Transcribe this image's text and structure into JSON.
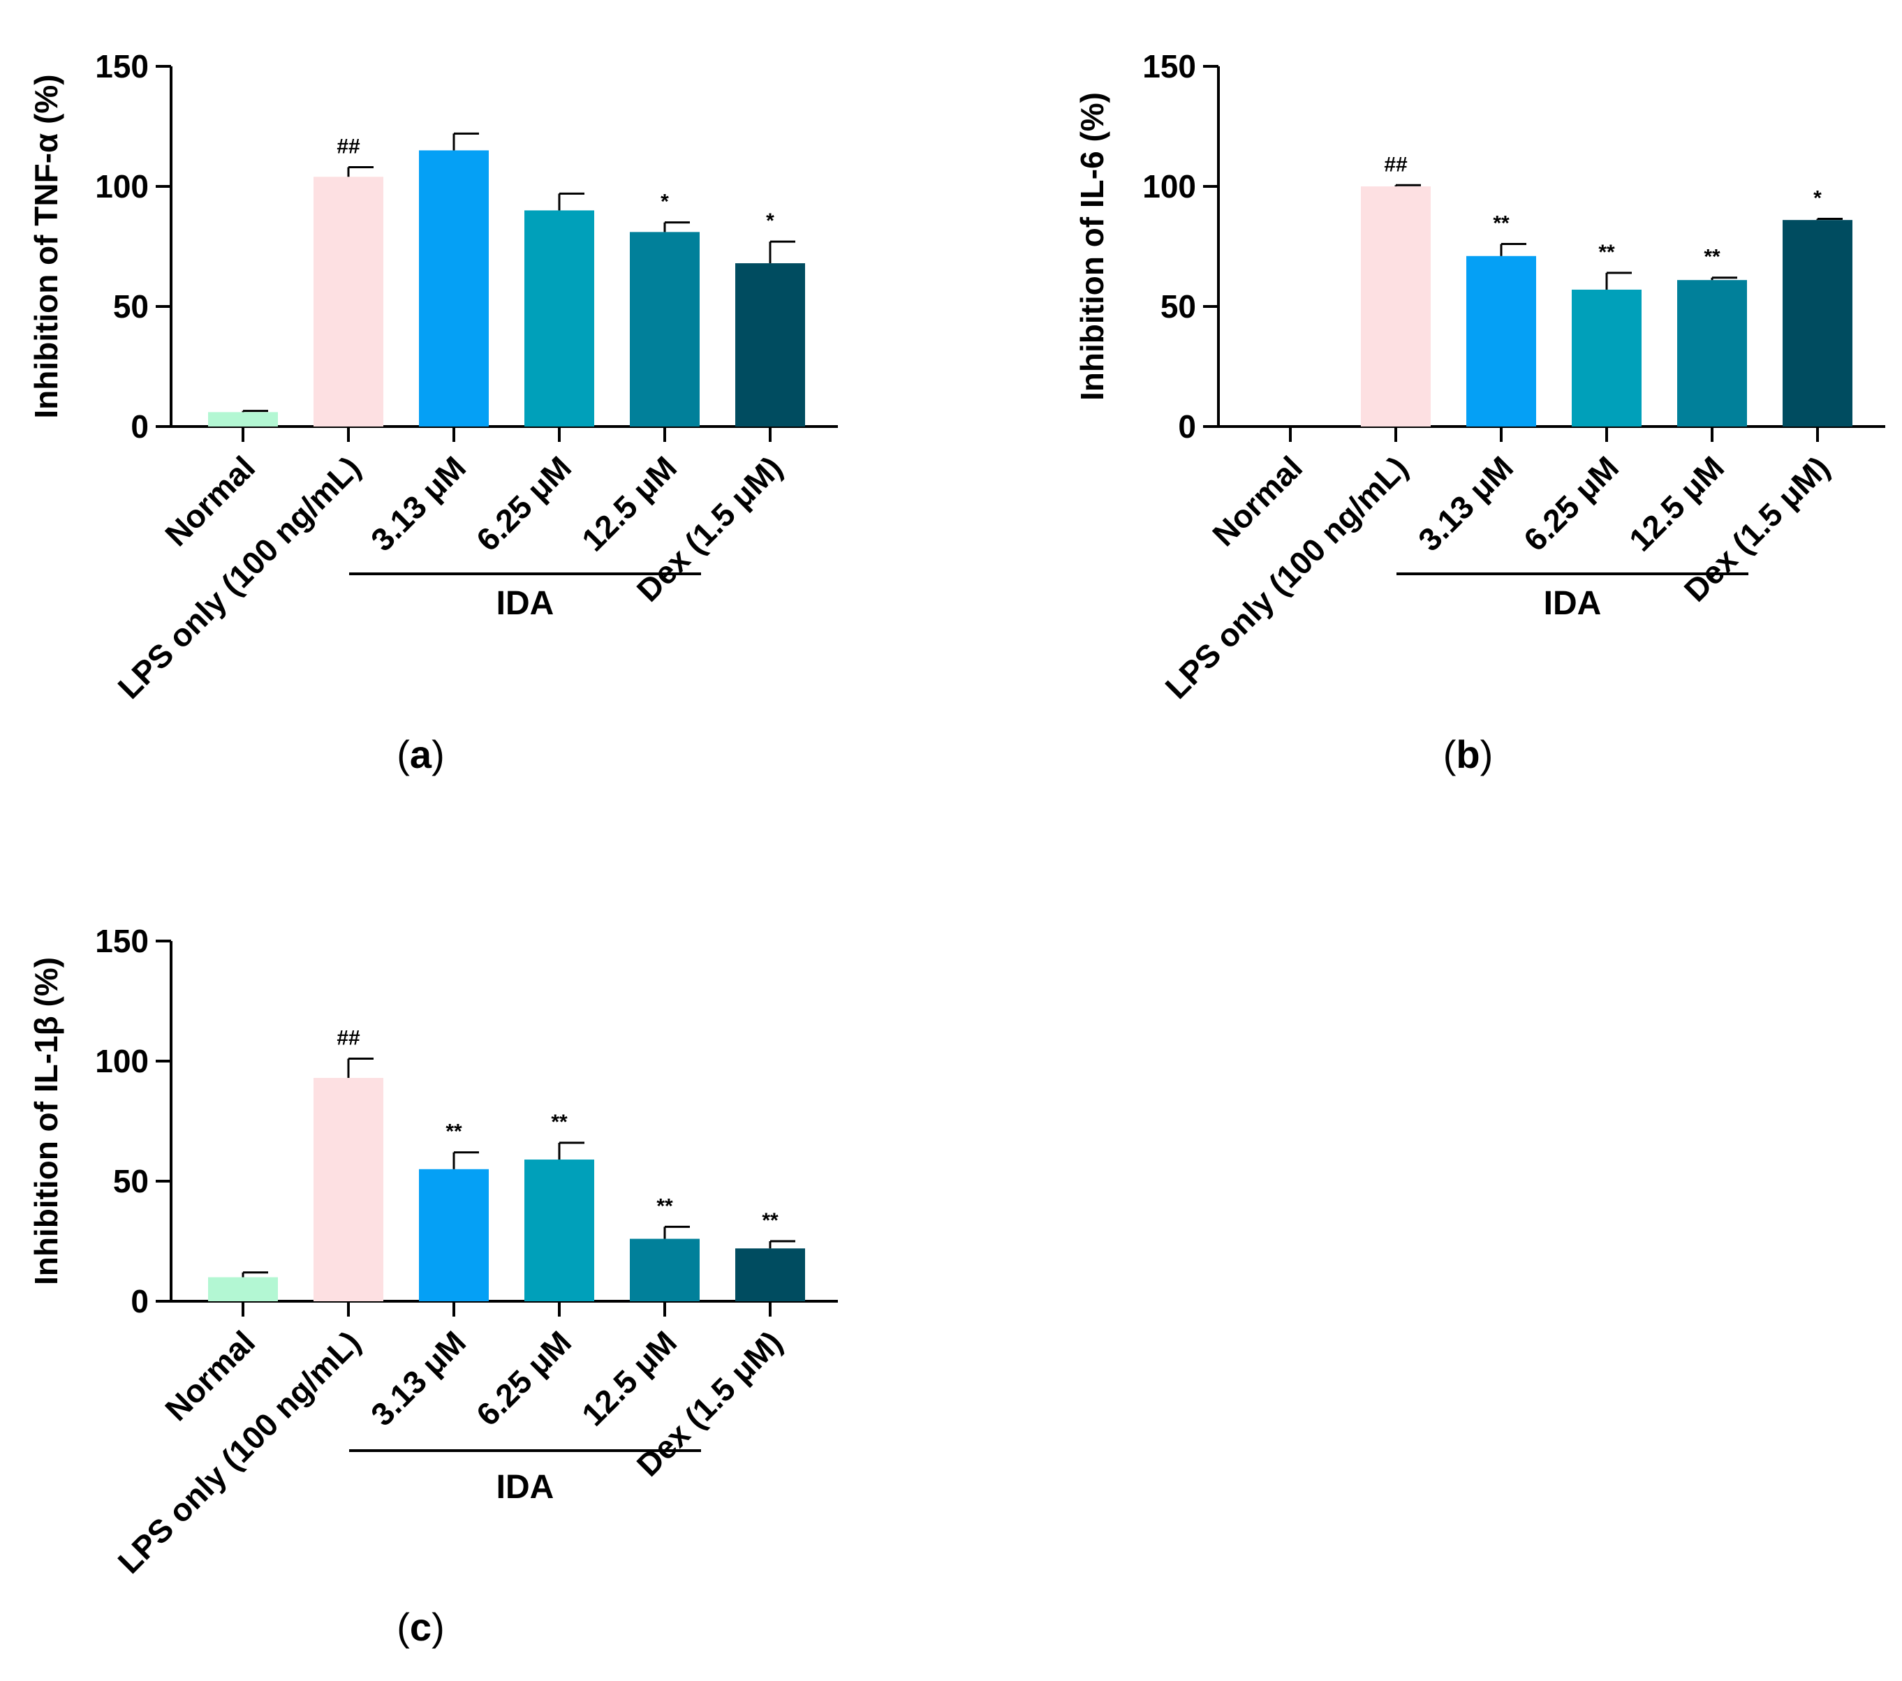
{
  "colors": {
    "Normal": "#b3f7d3",
    "LPS only (100 ng/mL)": "#fde0e2",
    "3.13 μM": "#05a0f5",
    "6.25 μM": "#00a0ba",
    "12.5 μM": "#01809a",
    "Dex (1.5 μM)": "#004c60"
  },
  "chart_data": [
    {
      "panel": "a",
      "type": "bar",
      "panel_label_open": "(",
      "panel_label_letter": "a",
      "panel_label_close": ")",
      "ylabel": "Inhibition of TNF-α (%)",
      "ylim": [
        0,
        150
      ],
      "yticks": [
        "0",
        "50",
        "100",
        "150"
      ],
      "categories": [
        "Normal",
        "LPS only (100 ng/mL)",
        "3.13 μM",
        "6.25 μM",
        "12.5 μM",
        "Dex (1.5 μM)"
      ],
      "values": [
        6,
        104,
        115,
        90,
        81,
        68
      ],
      "errors": [
        0.5,
        4,
        7,
        7,
        4,
        9
      ],
      "annotations": [
        "",
        "##",
        "",
        "",
        "*",
        "*"
      ],
      "group_label": "IDA",
      "group_range": [
        2,
        4
      ]
    },
    {
      "panel": "b",
      "type": "bar",
      "panel_label_open": "(",
      "panel_label_letter": "b",
      "panel_label_close": ")",
      "ylabel": "Inhibition of IL-6 (%)",
      "ylim": [
        0,
        150
      ],
      "yticks": [
        "0",
        "50",
        "100",
        "150"
      ],
      "categories": [
        "Normal",
        "LPS only (100 ng/mL)",
        "3.13 μM",
        "6.25 μM",
        "12.5 μM",
        "Dex (1.5 μM)"
      ],
      "values": [
        0,
        100,
        71,
        57,
        61,
        86
      ],
      "errors": [
        0,
        0.5,
        5,
        7,
        1,
        0.5
      ],
      "annotations": [
        "",
        "##",
        "**",
        "**",
        "**",
        "*"
      ],
      "group_label": "IDA",
      "group_range": [
        2,
        4
      ]
    },
    {
      "panel": "c",
      "type": "bar",
      "panel_label_open": "(",
      "panel_label_letter": "c",
      "panel_label_close": ")",
      "ylabel": "Inhibition of IL-1β (%)",
      "ylim": [
        0,
        150
      ],
      "yticks": [
        "0",
        "50",
        "100",
        "150"
      ],
      "categories": [
        "Normal",
        "LPS only (100 ng/mL)",
        "3.13 μM",
        "6.25 μM",
        "12.5 μM",
        "Dex (1.5 μM)"
      ],
      "values": [
        10,
        93,
        55,
        59,
        26,
        22
      ],
      "errors": [
        2,
        8,
        7,
        7,
        5,
        3
      ],
      "annotations": [
        "",
        "##",
        "**",
        "**",
        "**",
        "**"
      ],
      "group_label": "IDA",
      "group_range": [
        2,
        4
      ]
    }
  ]
}
